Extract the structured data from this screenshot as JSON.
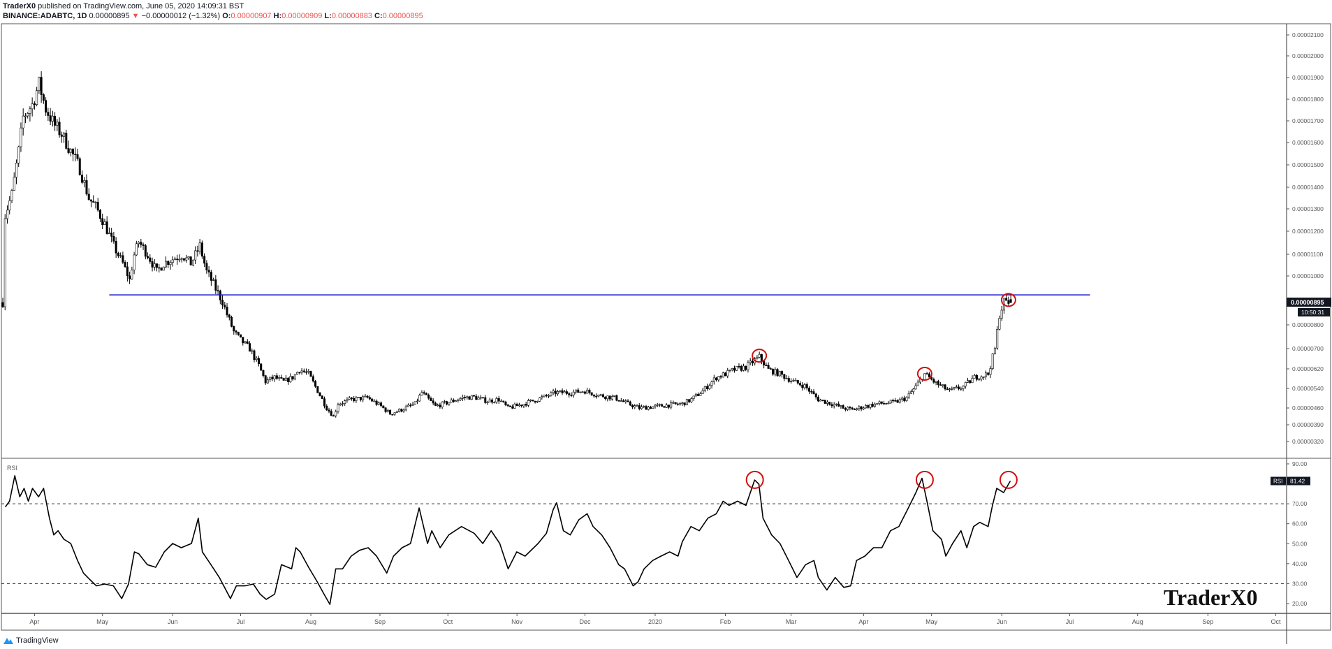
{
  "header": {
    "author": "TraderX0",
    "published": "published on TradingView.com, June 05, 2020 14:09:31 BST",
    "symbol": "BINANCE:ADABTC, 1D",
    "last": "0.00000895",
    "change": "−0.00000012 (−1.32%)",
    "o_label": "O:",
    "o": "0.00000907",
    "h_label": "H:",
    "h": "0.00000909",
    "l_label": "L:",
    "l": "0.00000883",
    "c_label": "C:",
    "c": "0.00000895",
    "down_arrow_icon": "triangle-down"
  },
  "footer": {
    "brand": "TradingView"
  },
  "watermark": "TraderX0",
  "colors": {
    "candle": "#000000",
    "resistance": "#1a1acc",
    "circle": "#d01010",
    "down": "#ef5350"
  },
  "chart_data": [
    {
      "type": "candlestick",
      "title": "BINANCE:ADABTC, 1D",
      "unit_note": "prices in 1e-8 BTC (satoshi); x in days since chart start",
      "price_ticks": [
        2100,
        2000,
        1900,
        1800,
        1700,
        1600,
        1500,
        1400,
        1300,
        1200,
        1100,
        1000,
        800,
        700,
        620,
        540,
        460,
        390,
        320
      ],
      "price_tick_labels": [
        "0.00002100",
        "0.00002000",
        "0.00001900",
        "0.00001800",
        "0.00001700",
        "0.00001600",
        "0.00001500",
        "0.00001400",
        "0.00001300",
        "0.00001200",
        "0.00001100",
        "0.00001000",
        "0.00000800",
        "0.00000700",
        "0.00000620",
        "0.00000540",
        "0.00000460",
        "0.00000390",
        "0.00000320"
      ],
      "last_price_label": "0.00000895",
      "countdown_label": "10:50:31",
      "x_ticks": [
        {
          "day": 14,
          "label": "Apr"
        },
        {
          "day": 44,
          "label": "May"
        },
        {
          "day": 75,
          "label": "Jun"
        },
        {
          "day": 105,
          "label": "Jul"
        },
        {
          "day": 136,
          "label": "Aug"
        },
        {
          "day": 166.5,
          "label": "Sep"
        },
        {
          "day": 196.5,
          "label": "Oct"
        },
        {
          "day": 227,
          "label": "Nov"
        },
        {
          "day": 257,
          "label": "Dec"
        },
        {
          "day": 288,
          "label": "2020"
        },
        {
          "day": 319,
          "label": "Feb"
        },
        {
          "day": 348,
          "label": "Mar"
        },
        {
          "day": 380,
          "label": "Apr"
        },
        {
          "day": 410,
          "label": "May"
        },
        {
          "day": 441,
          "label": "Jun"
        },
        {
          "day": 471,
          "label": "Jul"
        },
        {
          "day": 501,
          "label": "Aug"
        },
        {
          "day": 532,
          "label": "Sep"
        },
        {
          "day": 562,
          "label": "Oct"
        }
      ],
      "close_path": [
        [
          1,
          1271
        ],
        [
          4,
          1368
        ],
        [
          7,
          1562
        ],
        [
          9,
          1717
        ],
        [
          13,
          1775
        ],
        [
          16,
          1871
        ],
        [
          19,
          1755
        ],
        [
          23,
          1678
        ],
        [
          26,
          1639
        ],
        [
          30,
          1562
        ],
        [
          34,
          1484
        ],
        [
          38,
          1349
        ],
        [
          41,
          1310
        ],
        [
          45,
          1232
        ],
        [
          49,
          1136
        ],
        [
          53,
          1058
        ],
        [
          56,
          983
        ],
        [
          58,
          1097
        ],
        [
          60,
          1155
        ],
        [
          64,
          1097
        ],
        [
          68,
          1020
        ],
        [
          71,
          1058
        ],
        [
          75,
          1078
        ],
        [
          79,
          1097
        ],
        [
          83,
          1058
        ],
        [
          87,
          1136
        ],
        [
          90,
          1020
        ],
        [
          94,
          949
        ],
        [
          97,
          898
        ],
        [
          99,
          844
        ],
        [
          102,
          771
        ],
        [
          105,
          736
        ],
        [
          109,
          700
        ],
        [
          113,
          633
        ],
        [
          116,
          568
        ],
        [
          120,
          585
        ],
        [
          124,
          568
        ],
        [
          128,
          585
        ],
        [
          131,
          617
        ],
        [
          135,
          599
        ],
        [
          139,
          530
        ],
        [
          143,
          460
        ],
        [
          146,
          425
        ],
        [
          148,
          477
        ],
        [
          154,
          495
        ],
        [
          161,
          502
        ],
        [
          167,
          467
        ],
        [
          171,
          436
        ],
        [
          176,
          453
        ],
        [
          182,
          477
        ],
        [
          185,
          523
        ],
        [
          188,
          495
        ],
        [
          191,
          467
        ],
        [
          197,
          484
        ],
        [
          203,
          502
        ],
        [
          208,
          505
        ],
        [
          214,
          488
        ],
        [
          219,
          495
        ],
        [
          223,
          460
        ],
        [
          229,
          474
        ],
        [
          236,
          495
        ],
        [
          244,
          523
        ],
        [
          251,
          523
        ],
        [
          257,
          530
        ],
        [
          263,
          512
        ],
        [
          270,
          502
        ],
        [
          276,
          477
        ],
        [
          281,
          460
        ],
        [
          289,
          467
        ],
        [
          296,
          474
        ],
        [
          300,
          477
        ],
        [
          304,
          495
        ],
        [
          309,
          530
        ],
        [
          315,
          585
        ],
        [
          319,
          599
        ],
        [
          323,
          617
        ],
        [
          328,
          627
        ],
        [
          334,
          667
        ],
        [
          338,
          617
        ],
        [
          343,
          599
        ],
        [
          349,
          568
        ],
        [
          354,
          550
        ],
        [
          360,
          495
        ],
        [
          366,
          477
        ],
        [
          371,
          460
        ],
        [
          375,
          453
        ],
        [
          381,
          467
        ],
        [
          386,
          477
        ],
        [
          394,
          484
        ],
        [
          399,
          502
        ],
        [
          403,
          547
        ],
        [
          407,
          599
        ],
        [
          411,
          568
        ],
        [
          414,
          550
        ],
        [
          418,
          530
        ],
        [
          424,
          547
        ],
        [
          429,
          585
        ],
        [
          435,
          599
        ],
        [
          438,
          700
        ],
        [
          440,
          844
        ],
        [
          442,
          898
        ],
        [
          445,
          895
        ]
      ],
      "resistance_line": {
        "price": 925,
        "from_day": 47,
        "to_day": 480
      },
      "highlight_circles": [
        {
          "day": 334,
          "price": 672
        },
        {
          "day": 407,
          "price": 600
        },
        {
          "day": 444,
          "price": 905
        }
      ]
    },
    {
      "type": "line",
      "title": "RSI",
      "badge_label": "RSI",
      "last_value": "81.42",
      "ylim": [
        20,
        90
      ],
      "y_ticks": [
        90,
        70,
        60,
        50,
        40,
        30,
        20
      ],
      "y_tick_labels": [
        "90.00",
        "70.00",
        "60.00",
        "50.00",
        "40.00",
        "30.00",
        "20.00"
      ],
      "bands": [
        70,
        30
      ],
      "values": [
        [
          1.1,
          68.4
        ],
        [
          3,
          71.3
        ],
        [
          5.3,
          84.1
        ],
        [
          7.5,
          73.5
        ],
        [
          9.4,
          77.7
        ],
        [
          11.3,
          71.3
        ],
        [
          13.1,
          77.7
        ],
        [
          15.8,
          73.5
        ],
        [
          18,
          77.7
        ],
        [
          20.6,
          62.8
        ],
        [
          22.5,
          54.4
        ],
        [
          24.4,
          56.5
        ],
        [
          27,
          52.2
        ],
        [
          30,
          50.1
        ],
        [
          33,
          41.6
        ],
        [
          35.6,
          35.3
        ],
        [
          37.5,
          33.1
        ],
        [
          41.3,
          28.9
        ],
        [
          45,
          29.8
        ],
        [
          48.8,
          28.9
        ],
        [
          52.5,
          22.5
        ],
        [
          55.5,
          29.8
        ],
        [
          58.1,
          45.9
        ],
        [
          60,
          45.0
        ],
        [
          63.8,
          39.5
        ],
        [
          67.5,
          38.2
        ],
        [
          71.3,
          45.9
        ],
        [
          75,
          50.1
        ],
        [
          78.8,
          48.0
        ],
        [
          83.3,
          50.1
        ],
        [
          86.3,
          62.8
        ],
        [
          88.1,
          45.9
        ],
        [
          91.9,
          39.5
        ],
        [
          95.6,
          33.1
        ],
        [
          100.5,
          22.5
        ],
        [
          103.1,
          28.9
        ],
        [
          106.9,
          28.9
        ],
        [
          110.6,
          29.8
        ],
        [
          113.6,
          24.7
        ],
        [
          116.3,
          22.1
        ],
        [
          120,
          24.7
        ],
        [
          123,
          39.5
        ],
        [
          127.5,
          37.4
        ],
        [
          129.4,
          48.0
        ],
        [
          131.3,
          45.9
        ],
        [
          135,
          38.2
        ],
        [
          138.8,
          31.0
        ],
        [
          141.8,
          24.7
        ],
        [
          144.4,
          19.6
        ],
        [
          147,
          37.4
        ],
        [
          150,
          37.4
        ],
        [
          153.8,
          43.8
        ],
        [
          157.5,
          46.7
        ],
        [
          161.3,
          48.0
        ],
        [
          165,
          43.8
        ],
        [
          169.5,
          35.3
        ],
        [
          172.5,
          43.8
        ],
        [
          176.3,
          48.0
        ],
        [
          180,
          50.1
        ],
        [
          183.8,
          67.9
        ],
        [
          187.5,
          50.1
        ],
        [
          189.4,
          56.5
        ],
        [
          193.1,
          48.0
        ],
        [
          196.9,
          54.4
        ],
        [
          202.5,
          58.6
        ],
        [
          208.1,
          55.2
        ],
        [
          211.9,
          50.1
        ],
        [
          215.6,
          56.5
        ],
        [
          219.4,
          50.1
        ],
        [
          223.1,
          37.4
        ],
        [
          226.9,
          45.9
        ],
        [
          230.6,
          43.8
        ],
        [
          236.3,
          50.1
        ],
        [
          240,
          55.2
        ],
        [
          243,
          67.1
        ],
        [
          244.5,
          70.5
        ],
        [
          247.5,
          56.5
        ],
        [
          250.5,
          54.4
        ],
        [
          254.3,
          62.0
        ],
        [
          258,
          65.0
        ],
        [
          260.6,
          58.6
        ],
        [
          264.4,
          54.4
        ],
        [
          268.1,
          48.0
        ],
        [
          271.9,
          39.5
        ],
        [
          274.5,
          37.4
        ],
        [
          278.3,
          28.9
        ],
        [
          280.5,
          31.0
        ],
        [
          283.1,
          37.4
        ],
        [
          286.9,
          41.6
        ],
        [
          290.6,
          43.8
        ],
        [
          294.4,
          45.9
        ],
        [
          298.1,
          43.8
        ],
        [
          300,
          51.0
        ],
        [
          303.8,
          58.6
        ],
        [
          307.5,
          56.5
        ],
        [
          311.3,
          62.8
        ],
        [
          315,
          65.0
        ],
        [
          318,
          71.3
        ],
        [
          320.6,
          69.2
        ],
        [
          324.4,
          71.3
        ],
        [
          328.1,
          69.2
        ],
        [
          331.9,
          81.9
        ],
        [
          333.8,
          79.8
        ],
        [
          335.6,
          62.8
        ],
        [
          339.4,
          54.4
        ],
        [
          343.1,
          50.1
        ],
        [
          346.9,
          41.6
        ],
        [
          350.6,
          33.1
        ],
        [
          354.4,
          39.5
        ],
        [
          358.1,
          41.6
        ],
        [
          360,
          33.1
        ],
        [
          363.8,
          26.8
        ],
        [
          367.5,
          33.1
        ],
        [
          371.3,
          28.1
        ],
        [
          374.3,
          28.9
        ],
        [
          376.9,
          41.6
        ],
        [
          380.6,
          43.8
        ],
        [
          384.4,
          48.0
        ],
        [
          388.1,
          48.0
        ],
        [
          391.9,
          56.5
        ],
        [
          395.6,
          58.6
        ],
        [
          399.4,
          67.1
        ],
        [
          403.1,
          75.6
        ],
        [
          405.8,
          82.8
        ],
        [
          408,
          71.3
        ],
        [
          410.6,
          56.5
        ],
        [
          414.4,
          52.2
        ],
        [
          416.3,
          43.8
        ],
        [
          419.3,
          50.1
        ],
        [
          423,
          56.5
        ],
        [
          425.6,
          48.0
        ],
        [
          428.6,
          58.6
        ],
        [
          431.3,
          60.7
        ],
        [
          435,
          58.6
        ],
        [
          436.9,
          69.2
        ],
        [
          438.8,
          77.7
        ],
        [
          441.8,
          75.6
        ],
        [
          444.8,
          81.42
        ]
      ],
      "highlight_circles": [
        {
          "day": 332,
          "value": 82
        },
        {
          "day": 407,
          "value": 82
        },
        {
          "day": 444,
          "value": 82
        }
      ]
    }
  ]
}
